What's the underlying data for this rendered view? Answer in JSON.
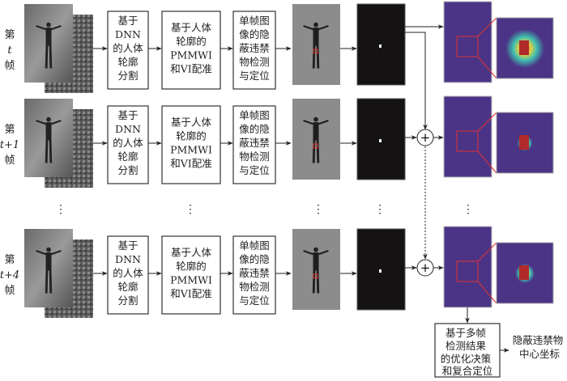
{
  "rows": [
    {
      "frame_label": [
        "第",
        "t",
        "帧"
      ]
    },
    {
      "frame_label": [
        "第",
        "t+1",
        "帧"
      ]
    },
    {
      "frame_label": [
        "第",
        "t+4",
        "帧"
      ]
    }
  ],
  "steps": {
    "segmentation": [
      "基于",
      "DNN",
      "的人体",
      "轮廓",
      "分割"
    ],
    "registration": [
      "基于人体",
      "轮廓的",
      "PMMWI",
      "和VI配准"
    ],
    "detection": [
      "单帧图",
      "像的隐",
      "蔽违禁",
      "物检测",
      "与定位"
    ]
  },
  "fusion": {
    "symbol": "+",
    "decision_box": [
      "基于多帧",
      "检测结果",
      "的优化决策",
      "和复合定位"
    ],
    "output": [
      "隐蔽违禁物",
      "中心坐标"
    ]
  },
  "ellipsis": "⋮",
  "colors": {
    "heatmap_bg": "#4b3486",
    "box_border": "#333333",
    "highlight": "#e03030"
  }
}
